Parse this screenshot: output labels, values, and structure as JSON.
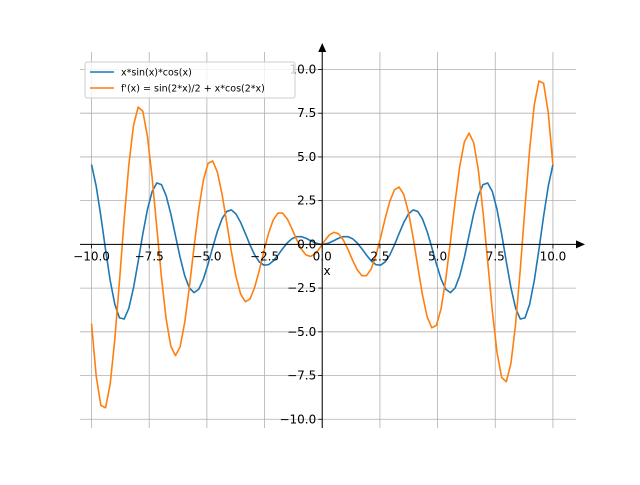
{
  "chart_data": {
    "type": "line",
    "title": "",
    "xlabel": "x",
    "ylabel": "",
    "xlim": [
      -10.5,
      11.0
    ],
    "ylim": [
      -10.5,
      11.0
    ],
    "grid": true,
    "legend_position": "top-left",
    "x_ticks": [
      -10,
      -7.5,
      -5,
      -2.5,
      0,
      2.5,
      5,
      7.5,
      10
    ],
    "x_tick_labels": [
      "−10.0",
      "−7.5",
      "−5.0",
      "−2.5",
      "0.0",
      "2.5",
      "5.0",
      "7.5",
      "10.0"
    ],
    "y_ticks": [
      -10,
      -7.5,
      -5,
      -2.5,
      0,
      2.5,
      5,
      7.5,
      10
    ],
    "y_tick_labels": [
      "−10.0",
      "−7.5",
      "−5.0",
      "−2.5",
      "0.0",
      "2.5",
      "5.0",
      "7.5",
      "10.0"
    ],
    "series": [
      {
        "name": "x*sin(x)*cos(x)",
        "color": "#1f77b4",
        "expr": "f"
      },
      {
        "name": "f'(x) = sin(2*x)/2 + x*cos(2*x)",
        "color": "#ff7f0e",
        "expr": "df"
      }
    ],
    "x_range": [
      -10,
      10
    ],
    "samples": 100
  }
}
